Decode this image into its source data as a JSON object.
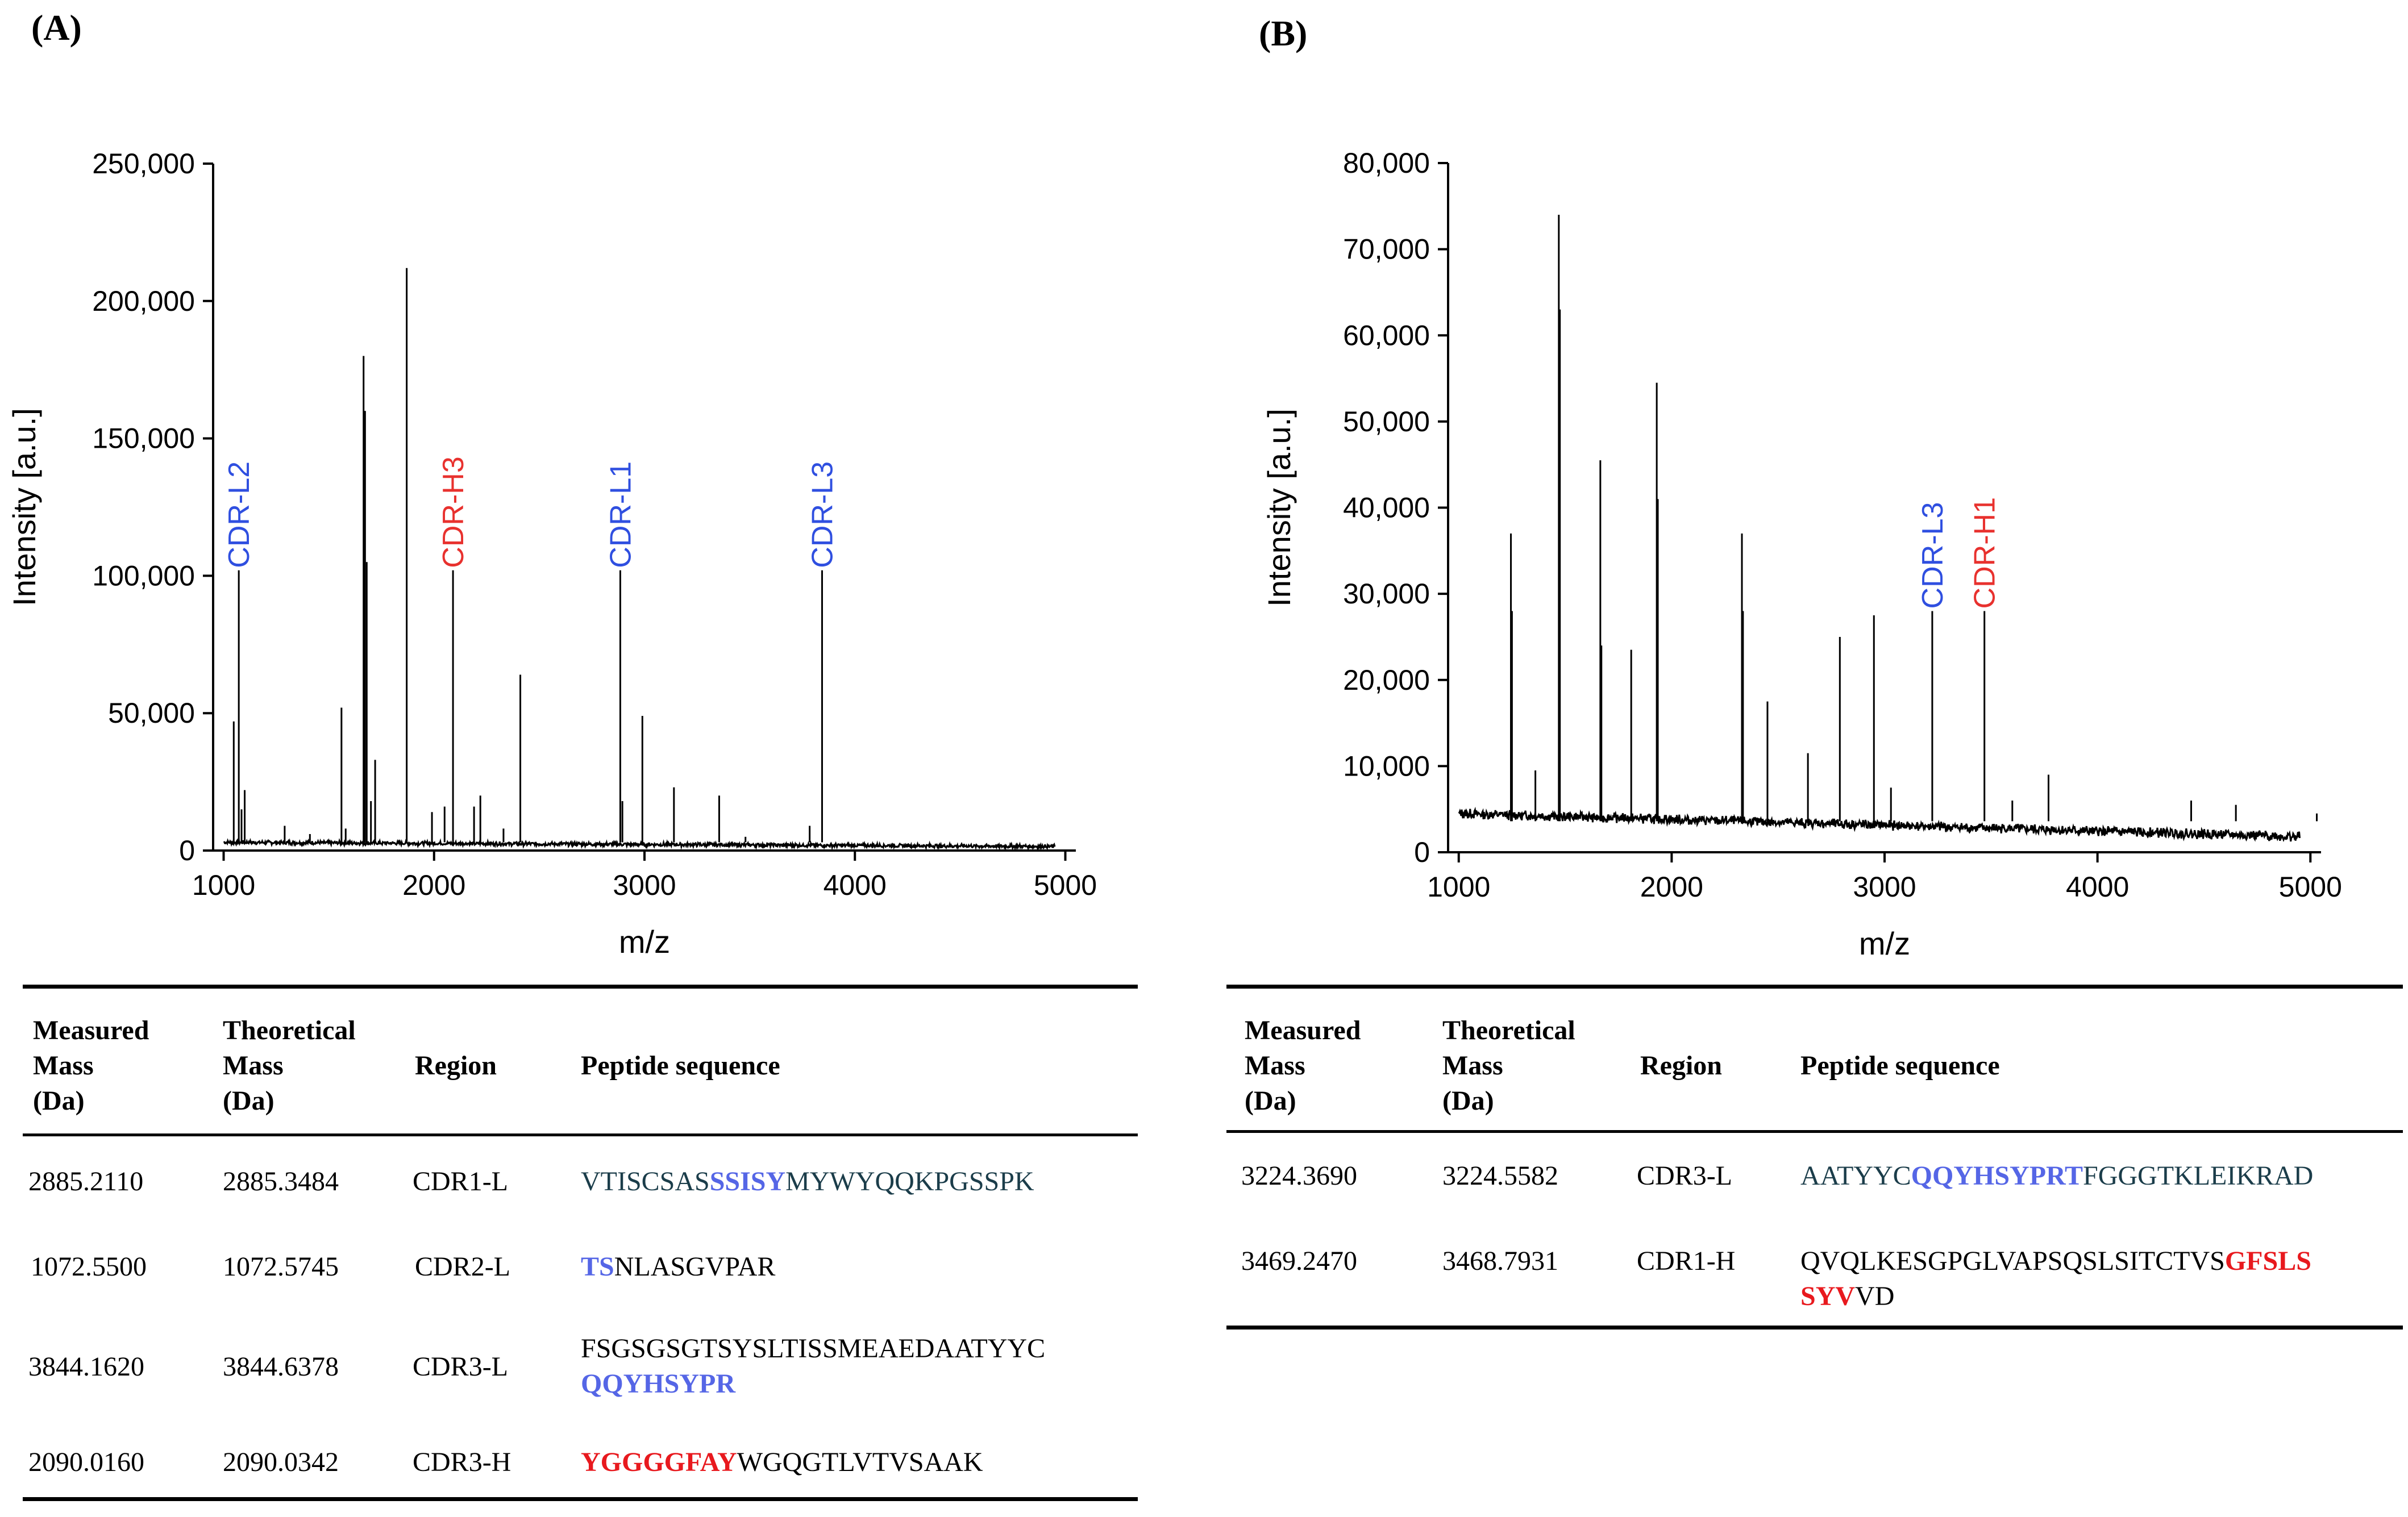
{
  "panels": [
    {
      "label": "(A)",
      "chart_data": {
        "type": "line",
        "title": "",
        "xlabel": "m/z",
        "ylabel": "Intensity [a.u.]",
        "xlim": [
          950,
          5050
        ],
        "ylim": [
          0,
          250000
        ],
        "xticks": [
          1000,
          2000,
          3000,
          4000,
          5000
        ],
        "xtick_labels": [
          "1000",
          "2000",
          "3000",
          "4000",
          "5000"
        ],
        "yticks": [
          0,
          50000,
          100000,
          150000,
          200000,
          250000
        ],
        "ytick_labels": [
          "0",
          "50,000",
          "100,000",
          "150,000",
          "200,000",
          "250,000"
        ],
        "baseline": 3000,
        "noise": 1500,
        "peaks": [
          {
            "x": 1048,
            "y": 47000
          },
          {
            "x": 1072,
            "y": 102000
          },
          {
            "x": 1085,
            "y": 15000
          },
          {
            "x": 1100,
            "y": 22000
          },
          {
            "x": 1290,
            "y": 9000
          },
          {
            "x": 1410,
            "y": 6000
          },
          {
            "x": 1560,
            "y": 52000
          },
          {
            "x": 1580,
            "y": 8000
          },
          {
            "x": 1665,
            "y": 180000
          },
          {
            "x": 1672,
            "y": 160000
          },
          {
            "x": 1680,
            "y": 105000
          },
          {
            "x": 1700,
            "y": 18000
          },
          {
            "x": 1720,
            "y": 33000
          },
          {
            "x": 1870,
            "y": 212000
          },
          {
            "x": 1990,
            "y": 14000
          },
          {
            "x": 2050,
            "y": 16000
          },
          {
            "x": 2090,
            "y": 102000
          },
          {
            "x": 2190,
            "y": 16000
          },
          {
            "x": 2220,
            "y": 20000
          },
          {
            "x": 2330,
            "y": 8000
          },
          {
            "x": 2410,
            "y": 64000
          },
          {
            "x": 2885,
            "y": 102000
          },
          {
            "x": 2895,
            "y": 18000
          },
          {
            "x": 2990,
            "y": 49000
          },
          {
            "x": 3140,
            "y": 23000
          },
          {
            "x": 3355,
            "y": 20000
          },
          {
            "x": 3480,
            "y": 5000
          },
          {
            "x": 3785,
            "y": 9000
          },
          {
            "x": 3844,
            "y": 102000
          }
        ],
        "annotations": [
          {
            "text": "CDR-L2",
            "x": 1072,
            "color": "#2f4fe0"
          },
          {
            "text": "CDR-H3",
            "x": 2090,
            "color": "#e8312e"
          },
          {
            "text": "CDR-L1",
            "x": 2885,
            "color": "#2f4fe0"
          },
          {
            "text": "CDR-L3",
            "x": 3844,
            "color": "#2f4fe0"
          }
        ]
      },
      "table": {
        "headers": [
          "Measured\nMass\n(Da)",
          "Theoretical\nMass\n(Da)",
          "Region",
          "Peptide sequence"
        ],
        "rows": [
          {
            "measured": "2885.2110",
            "theoretical": "2885.3484",
            "region": "CDR1-L",
            "sequence": [
              {
                "text": "VTISCSAS",
                "style": "teal"
              },
              {
                "text": "SSISY",
                "style": "blue"
              },
              {
                "text": "MYWYQQKPGSSPK",
                "style": "teal"
              }
            ]
          },
          {
            "measured": "1072.5500",
            "theoretical": "1072.5745",
            "region": "CDR2-L",
            "sequence": [
              {
                "text": "TS",
                "style": "blue"
              },
              {
                "text": "NLASGVPAR",
                "style": "black"
              }
            ]
          },
          {
            "measured": "3844.1620",
            "theoretical": "3844.6378",
            "region": "CDR3-L",
            "sequence": [
              {
                "text": "FSGSGSGTSYSLTISSMEAEDAATYYC\n",
                "style": "black"
              },
              {
                "text": "QQYHSYPR",
                "style": "blue"
              }
            ]
          },
          {
            "measured": "2090.0160",
            "theoretical": "2090.0342",
            "region": "CDR3-H",
            "sequence": [
              {
                "text": "YGGGGFAY",
                "style": "red"
              },
              {
                "text": "WGQGTLVTVSAAK",
                "style": "black"
              }
            ]
          }
        ]
      }
    },
    {
      "label": "(B)",
      "chart_data": {
        "type": "line",
        "title": "",
        "xlabel": "m/z",
        "ylabel": "Intensity [a.u.]",
        "xlim": [
          950,
          5050
        ],
        "ylim": [
          0,
          80000
        ],
        "xticks": [
          1000,
          2000,
          3000,
          4000,
          5000
        ],
        "xtick_labels": [
          "1000",
          "2000",
          "3000",
          "4000",
          "5000"
        ],
        "yticks": [
          0,
          10000,
          20000,
          30000,
          40000,
          50000,
          60000,
          70000,
          80000
        ],
        "ytick_labels": [
          "0",
          "10,000",
          "20,000",
          "30,000",
          "40,000",
          "50,000",
          "60,000",
          "70,000",
          "80,000"
        ],
        "baseline_start": 4500,
        "baseline_end": 1800,
        "noise": 1200,
        "peaks": [
          {
            "x": 1245,
            "y": 37000
          },
          {
            "x": 1250,
            "y": 28000
          },
          {
            "x": 1360,
            "y": 9500
          },
          {
            "x": 1470,
            "y": 74000
          },
          {
            "x": 1475,
            "y": 63000
          },
          {
            "x": 1665,
            "y": 45500
          },
          {
            "x": 1670,
            "y": 24000
          },
          {
            "x": 1810,
            "y": 23500
          },
          {
            "x": 1930,
            "y": 54500
          },
          {
            "x": 1935,
            "y": 41000
          },
          {
            "x": 2330,
            "y": 37000
          },
          {
            "x": 2335,
            "y": 28000
          },
          {
            "x": 2450,
            "y": 17500
          },
          {
            "x": 2640,
            "y": 11500
          },
          {
            "x": 2790,
            "y": 25000
          },
          {
            "x": 2950,
            "y": 27500
          },
          {
            "x": 3030,
            "y": 7500
          },
          {
            "x": 3224,
            "y": 28000
          },
          {
            "x": 3469,
            "y": 28000
          },
          {
            "x": 3600,
            "y": 6000
          },
          {
            "x": 3770,
            "y": 9000
          },
          {
            "x": 4440,
            "y": 6000
          },
          {
            "x": 4650,
            "y": 5500
          },
          {
            "x": 5030,
            "y": 4500
          }
        ],
        "annotations": [
          {
            "text": "CDR-L3",
            "x": 3224,
            "color": "#2f4fe0"
          },
          {
            "text": "CDR-H1",
            "x": 3469,
            "color": "#e8312e"
          }
        ]
      },
      "table": {
        "headers": [
          "Measured\nMass\n(Da)",
          "Theoretical\nMass\n(Da)",
          "Region",
          "Peptide sequence"
        ],
        "rows": [
          {
            "measured": "3224.3690",
            "theoretical": "3224.5582",
            "region": "CDR3-L",
            "sequence": [
              {
                "text": "AATYYC",
                "style": "teal"
              },
              {
                "text": "QQYHSYPRT",
                "style": "blue"
              },
              {
                "text": "FGGGTKLEIKRAD",
                "style": "teal"
              }
            ]
          },
          {
            "measured": "3469.2470",
            "theoretical": "3468.7931",
            "region": "CDR1-H",
            "sequence": [
              {
                "text": "QVQLKESGPGLVAPSQSLSITCTVS",
                "style": "black"
              },
              {
                "text": "GFSLS\nSYV",
                "style": "red"
              },
              {
                "text": "VD",
                "style": "black"
              }
            ]
          }
        ]
      }
    }
  ]
}
